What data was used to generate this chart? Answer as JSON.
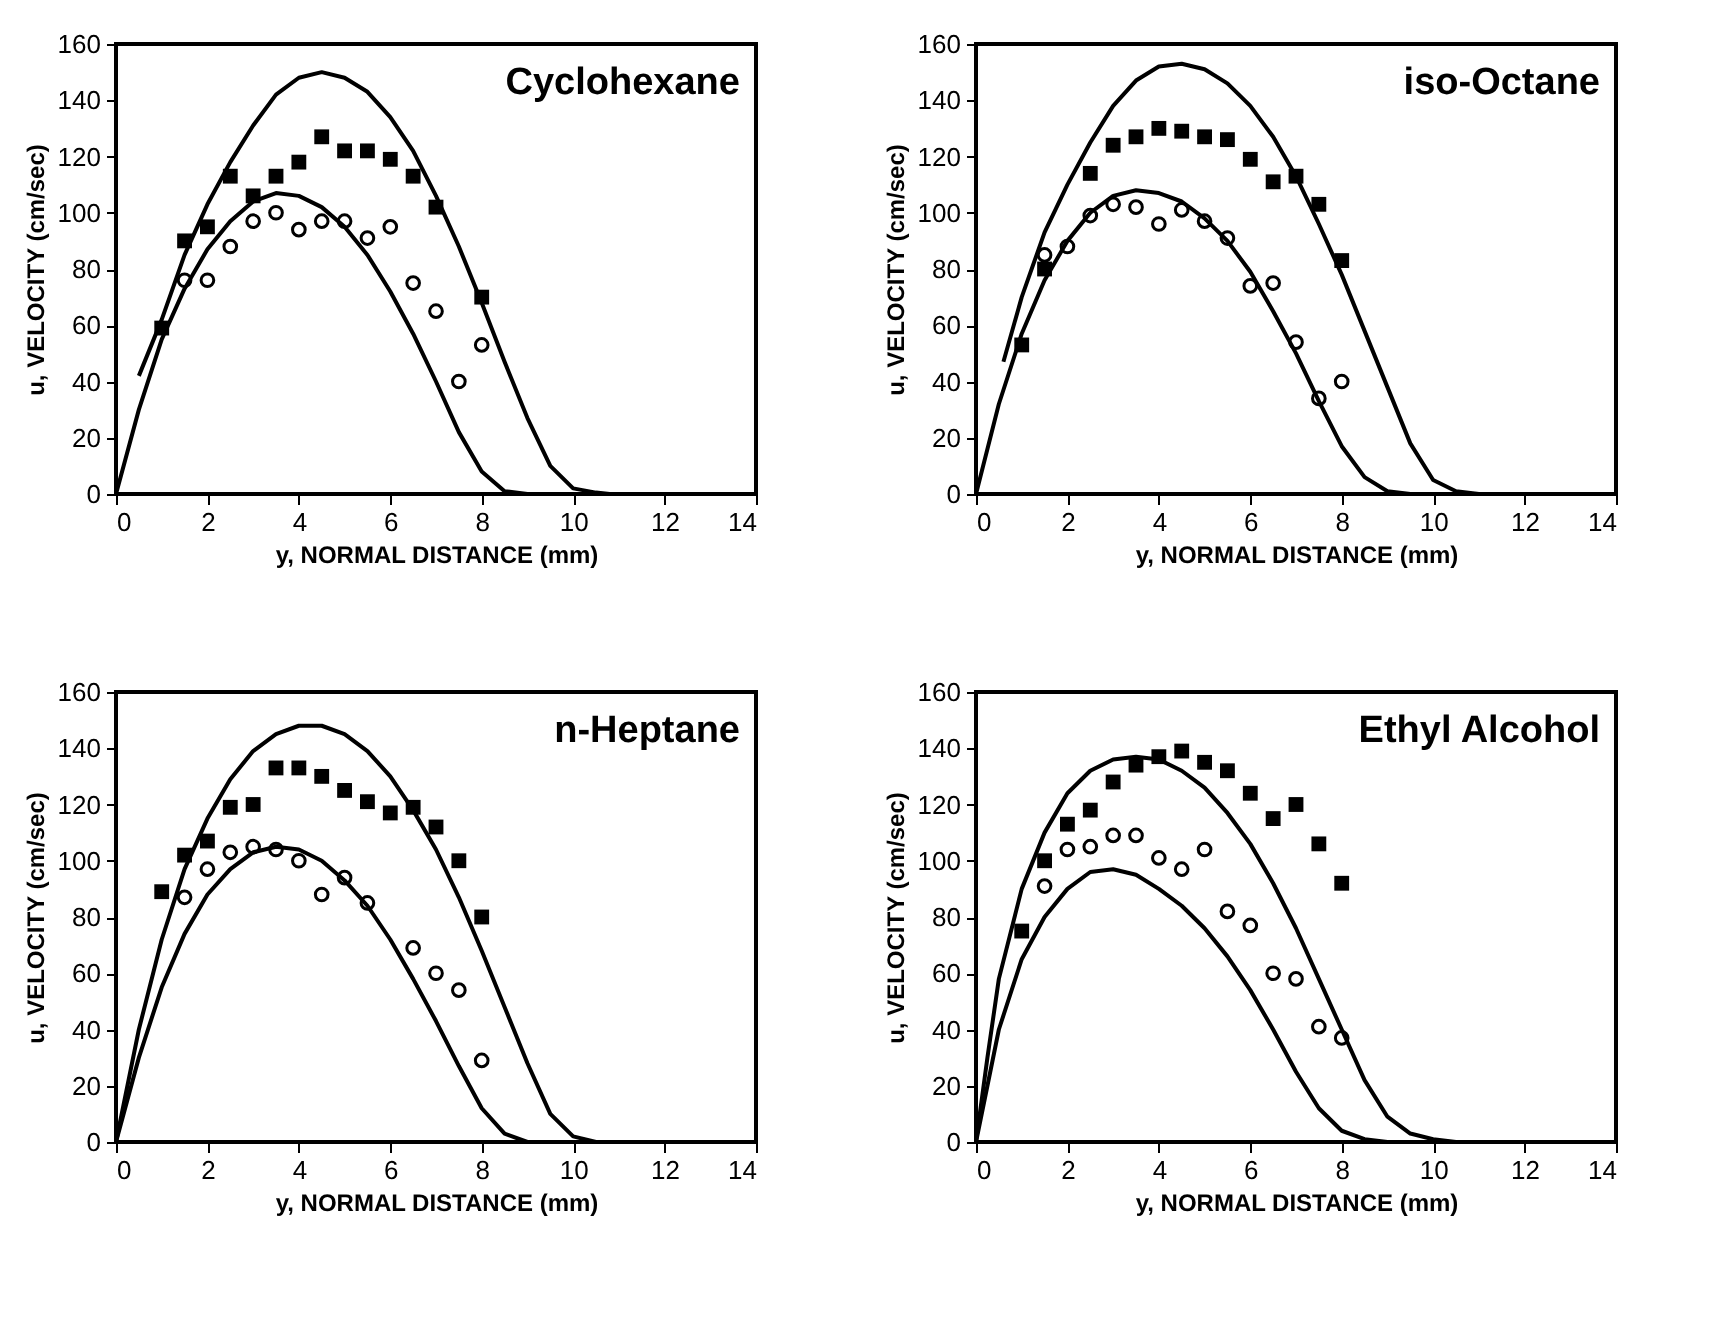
{
  "chart_data": [
    {
      "type": "scatter",
      "title": "Cyclohexane",
      "xlabel": "y, NORMAL DISTANCE (mm)",
      "ylabel": "u, VELOCITY (cm/sec)",
      "xlim": [
        0,
        14
      ],
      "xticks": [
        0,
        2,
        4,
        6,
        8,
        10,
        12,
        14
      ],
      "ylim": [
        0,
        160
      ],
      "yticks": [
        0,
        20,
        40,
        60,
        80,
        100,
        120,
        140,
        160
      ],
      "grid": false,
      "series": [
        {
          "type": "scatter",
          "marker": "square",
          "color": "#000000",
          "x": [
            1,
            1.5,
            2,
            2.5,
            3,
            3.5,
            4,
            4.5,
            5,
            5.5,
            6,
            6.5,
            7,
            8
          ],
          "values": [
            59,
            90,
            95,
            113,
            106,
            113,
            118,
            127,
            122,
            122,
            119,
            113,
            102,
            70
          ]
        },
        {
          "type": "scatter",
          "marker": "circle",
          "color": "#000000",
          "x": [
            1.5,
            2,
            2.5,
            3,
            3.5,
            4,
            4.5,
            5,
            5.5,
            6,
            6.5,
            7,
            7.5,
            8
          ],
          "values": [
            76,
            76,
            88,
            97,
            100,
            94,
            97,
            97,
            91,
            95,
            75,
            65,
            40,
            53
          ]
        },
        {
          "type": "line",
          "marker": "none",
          "line_style": "solid",
          "color": "#000000",
          "x": [
            0.5,
            1,
            1.5,
            2,
            2.5,
            3,
            3.5,
            4,
            4.5,
            5,
            5.5,
            6,
            6.5,
            7,
            7.5,
            8,
            8.5,
            9,
            9.5,
            10,
            10.5,
            10.8
          ],
          "values": [
            42,
            62,
            85,
            103,
            118,
            131,
            142,
            148,
            150,
            148,
            143,
            134,
            122,
            106,
            88,
            68,
            47,
            27,
            10,
            2,
            0.5,
            0
          ]
        },
        {
          "type": "line",
          "marker": "none",
          "line_style": "solid",
          "color": "#000000",
          "x": [
            0,
            0.5,
            1,
            1.5,
            2,
            2.5,
            3,
            3.5,
            4,
            4.5,
            5,
            5.5,
            6,
            6.5,
            7,
            7.5,
            8,
            8.5,
            9
          ],
          "values": [
            0,
            30,
            55,
            73,
            87,
            97,
            104,
            107,
            106,
            102,
            95,
            85,
            72,
            57,
            40,
            22,
            8,
            1,
            0
          ]
        }
      ]
    },
    {
      "type": "scatter",
      "title": "iso-Octane",
      "xlabel": "y, NORMAL DISTANCE (mm)",
      "ylabel": "u, VELOCITY (cm/sec)",
      "xlim": [
        0,
        14
      ],
      "xticks": [
        0,
        2,
        4,
        6,
        8,
        10,
        12,
        14
      ],
      "ylim": [
        0,
        160
      ],
      "yticks": [
        0,
        20,
        40,
        60,
        80,
        100,
        120,
        140,
        160
      ],
      "grid": false,
      "series": [
        {
          "type": "scatter",
          "marker": "square",
          "color": "#000000",
          "x": [
            1,
            1.5,
            2.5,
            3,
            3.5,
            4,
            4.5,
            5,
            5.5,
            6,
            6.5,
            7,
            7.5,
            8
          ],
          "values": [
            53,
            80,
            114,
            124,
            127,
            130,
            129,
            127,
            126,
            119,
            111,
            113,
            103,
            83
          ]
        },
        {
          "type": "scatter",
          "marker": "circle",
          "color": "#000000",
          "x": [
            1.5,
            2,
            2.5,
            3,
            3.5,
            4,
            4.5,
            5,
            5.5,
            6,
            6.5,
            7,
            7.5,
            8
          ],
          "values": [
            85,
            88,
            99,
            103,
            102,
            96,
            101,
            97,
            91,
            74,
            75,
            54,
            34,
            40
          ]
        },
        {
          "type": "line",
          "marker": "none",
          "line_style": "solid",
          "color": "#000000",
          "x": [
            0.6,
            1,
            1.5,
            2,
            2.5,
            3,
            3.5,
            4,
            4.5,
            5,
            5.5,
            6,
            6.5,
            7,
            7.5,
            8,
            8.5,
            9,
            9.5,
            10,
            10.5,
            11
          ],
          "values": [
            47,
            70,
            93,
            110,
            125,
            138,
            147,
            152,
            153,
            151,
            146,
            138,
            127,
            113,
            96,
            78,
            58,
            38,
            18,
            5,
            1,
            0
          ]
        },
        {
          "type": "line",
          "marker": "none",
          "line_style": "solid",
          "color": "#000000",
          "x": [
            0,
            0.5,
            1,
            1.5,
            2,
            2.5,
            3,
            3.5,
            4,
            4.5,
            5,
            5.5,
            6,
            6.5,
            7,
            7.5,
            8,
            8.5,
            9,
            9.5
          ],
          "values": [
            0,
            32,
            57,
            76,
            90,
            100,
            106,
            108,
            107,
            104,
            98,
            90,
            79,
            65,
            50,
            33,
            17,
            6,
            1,
            0
          ]
        }
      ]
    },
    {
      "type": "scatter",
      "title": "n-Heptane",
      "xlabel": "y, NORMAL DISTANCE (mm)",
      "ylabel": "u, VELOCITY (cm/sec)",
      "xlim": [
        0,
        14
      ],
      "xticks": [
        0,
        2,
        4,
        6,
        8,
        10,
        12,
        14
      ],
      "ylim": [
        0,
        160
      ],
      "yticks": [
        0,
        20,
        40,
        60,
        80,
        100,
        120,
        140,
        160
      ],
      "grid": false,
      "series": [
        {
          "type": "scatter",
          "marker": "square",
          "color": "#000000",
          "x": [
            1,
            1.5,
            2,
            2.5,
            3,
            3.5,
            4,
            4.5,
            5,
            5.5,
            6,
            6.5,
            7,
            7.5,
            8
          ],
          "values": [
            89,
            102,
            107,
            119,
            120,
            133,
            133,
            130,
            125,
            121,
            117,
            119,
            112,
            100,
            80
          ]
        },
        {
          "type": "scatter",
          "marker": "circle",
          "color": "#000000",
          "x": [
            1.5,
            2,
            2.5,
            3,
            3.5,
            4,
            4.5,
            5,
            5.5,
            6.5,
            7,
            7.5,
            8
          ],
          "values": [
            87,
            97,
            103,
            105,
            104,
            100,
            88,
            94,
            85,
            69,
            60,
            54,
            29
          ]
        },
        {
          "type": "line",
          "marker": "none",
          "line_style": "solid",
          "color": "#000000",
          "x": [
            0,
            0.5,
            1,
            1.5,
            2,
            2.5,
            3,
            3.5,
            4,
            4.5,
            5,
            5.5,
            6,
            6.5,
            7,
            7.5,
            8,
            8.5,
            9,
            9.5,
            10,
            10.5
          ],
          "values": [
            0,
            40,
            72,
            97,
            115,
            129,
            139,
            145,
            148,
            148,
            145,
            139,
            130,
            118,
            104,
            87,
            68,
            48,
            28,
            10,
            2,
            0
          ]
        },
        {
          "type": "line",
          "marker": "none",
          "line_style": "solid",
          "color": "#000000",
          "x": [
            0,
            0.5,
            1,
            1.5,
            2,
            2.5,
            3,
            3.5,
            4,
            4.5,
            5,
            5.5,
            6,
            6.5,
            7,
            7.5,
            8,
            8.5,
            9
          ],
          "values": [
            0,
            30,
            55,
            74,
            88,
            97,
            103,
            105,
            104,
            100,
            93,
            84,
            72,
            58,
            43,
            27,
            12,
            3,
            0
          ]
        }
      ]
    },
    {
      "type": "scatter",
      "title": "Ethyl Alcohol",
      "xlabel": "y, NORMAL DISTANCE (mm)",
      "ylabel": "u, VELOCITY (cm/sec)",
      "xlim": [
        0,
        14
      ],
      "xticks": [
        0,
        2,
        4,
        6,
        8,
        10,
        12,
        14
      ],
      "ylim": [
        0,
        160
      ],
      "yticks": [
        0,
        20,
        40,
        60,
        80,
        100,
        120,
        140,
        160
      ],
      "grid": false,
      "series": [
        {
          "type": "scatter",
          "marker": "square",
          "color": "#000000",
          "x": [
            1,
            1.5,
            2,
            2.5,
            3,
            3.5,
            4,
            4.5,
            5,
            5.5,
            6,
            6.5,
            7,
            7.5,
            8
          ],
          "values": [
            75,
            100,
            113,
            118,
            128,
            134,
            137,
            139,
            135,
            132,
            124,
            115,
            120,
            106,
            92
          ]
        },
        {
          "type": "scatter",
          "marker": "circle",
          "color": "#000000",
          "x": [
            1.5,
            2,
            2.5,
            3,
            3.5,
            4,
            4.5,
            5,
            5.5,
            6,
            6.5,
            7,
            7.5,
            8
          ],
          "values": [
            91,
            104,
            105,
            109,
            109,
            101,
            97,
            104,
            82,
            77,
            60,
            58,
            41,
            37
          ]
        },
        {
          "type": "line",
          "marker": "none",
          "line_style": "solid",
          "color": "#000000",
          "x": [
            0,
            0.25,
            0.5,
            1,
            1.5,
            2,
            2.5,
            3,
            3.5,
            4,
            4.5,
            5,
            5.5,
            6,
            6.5,
            7,
            7.5,
            8,
            8.5,
            9,
            9.5,
            10,
            10.5
          ],
          "values": [
            0,
            30,
            58,
            90,
            110,
            124,
            132,
            136,
            137,
            136,
            132,
            126,
            117,
            106,
            92,
            76,
            58,
            40,
            22,
            9,
            3,
            1,
            0
          ]
        },
        {
          "type": "line",
          "marker": "none",
          "line_style": "solid",
          "color": "#000000",
          "x": [
            0,
            0.5,
            1,
            1.5,
            2,
            2.5,
            3,
            3.5,
            4,
            4.5,
            5,
            5.5,
            6,
            6.5,
            7,
            7.5,
            8,
            8.5,
            9
          ],
          "values": [
            0,
            40,
            65,
            80,
            90,
            96,
            97,
            95,
            90,
            84,
            76,
            66,
            54,
            40,
            25,
            12,
            4,
            1,
            0
          ]
        }
      ]
    }
  ]
}
